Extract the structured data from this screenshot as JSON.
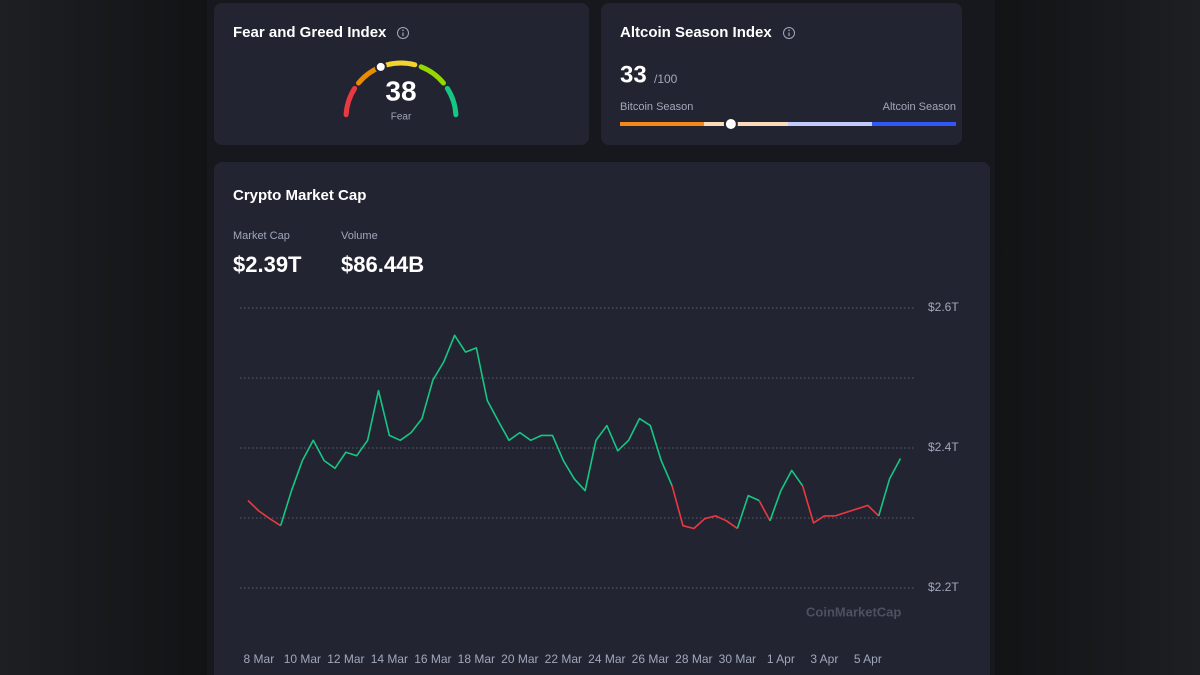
{
  "fear_greed": {
    "title": "Fear and Greed Index",
    "value": 38,
    "label": "Fear",
    "range": [
      0,
      100
    ],
    "colors": [
      "#ea3943",
      "#ea8c00",
      "#f3d42f",
      "#93d900",
      "#16c784"
    ]
  },
  "altcoin_season": {
    "title": "Altcoin Season Index",
    "value": 33,
    "max_label": "/100",
    "range": [
      0,
      100
    ],
    "left_label": "Bitcoin Season",
    "right_label": "Altcoin Season",
    "colors": [
      "#f68819",
      "#fcdbb9",
      "#c1ccfd",
      "#3156fa"
    ]
  },
  "market_cap": {
    "title": "Crypto Market Cap",
    "stats": [
      {
        "label": "Market Cap",
        "value": "$2.39T"
      },
      {
        "label": "Volume",
        "value": "$86.44B"
      }
    ],
    "watermark": "CoinMarketCap"
  },
  "chart_data": {
    "type": "line",
    "x": [
      7.5,
      8,
      8.5,
      9,
      9.5,
      10,
      10.5,
      11,
      11.5,
      12,
      12.5,
      13,
      13.5,
      14,
      14.5,
      15,
      15.5,
      16,
      16.5,
      17,
      17.5,
      18,
      18.5,
      19,
      19.5,
      20,
      20.5,
      21,
      21.5,
      22,
      22.5,
      23,
      23.5,
      24,
      24.5,
      25,
      25.5,
      26,
      26.5,
      27,
      27.5,
      28,
      28.5,
      29,
      29.5,
      30,
      30.5,
      31,
      31.5,
      32,
      32.5,
      33,
      33.5,
      34,
      34.5,
      35,
      35.5,
      36,
      36.5,
      37,
      37.5
    ],
    "values": [
      2.325,
      2.31,
      2.299,
      2.289,
      2.339,
      2.382,
      2.411,
      2.382,
      2.371,
      2.394,
      2.389,
      2.411,
      2.482,
      2.418,
      2.411,
      2.422,
      2.442,
      2.497,
      2.523,
      2.561,
      2.537,
      2.543,
      2.468,
      2.439,
      2.411,
      2.422,
      2.411,
      2.418,
      2.418,
      2.382,
      2.356,
      2.339,
      2.411,
      2.432,
      2.396,
      2.411,
      2.442,
      2.432,
      2.382,
      2.346,
      2.289,
      2.285,
      2.299,
      2.303,
      2.296,
      2.285,
      2.332,
      2.325,
      2.296,
      2.339,
      2.368,
      2.346,
      2.293,
      2.303,
      2.303,
      2.308,
      2.313,
      2.318,
      2.303,
      2.356,
      2.385
    ],
    "xlim": [
      7.5,
      37.8
    ],
    "xticks": [
      {
        "value": 8,
        "label": "8 Mar"
      },
      {
        "value": 10,
        "label": "10 Mar"
      },
      {
        "value": 12,
        "label": "12 Mar"
      },
      {
        "value": 14,
        "label": "14 Mar"
      },
      {
        "value": 16,
        "label": "16 Mar"
      },
      {
        "value": 18,
        "label": "18 Mar"
      },
      {
        "value": 20,
        "label": "20 Mar"
      },
      {
        "value": 22,
        "label": "22 Mar"
      },
      {
        "value": 24,
        "label": "24 Mar"
      },
      {
        "value": 26,
        "label": "26 Mar"
      },
      {
        "value": 28,
        "label": "28 Mar"
      },
      {
        "value": 30,
        "label": "30 Mar"
      },
      {
        "value": 32,
        "label": "1 Apr"
      },
      {
        "value": 34,
        "label": "3 Apr"
      },
      {
        "value": 36,
        "label": "5 Apr"
      }
    ],
    "ylim": [
      2.13,
      2.62
    ],
    "yticks": [
      {
        "value": 2.2,
        "label": "$2.2T"
      },
      {
        "value": 2.3,
        "label": null
      },
      {
        "value": 2.4,
        "label": "$2.4T"
      },
      {
        "value": 2.5,
        "label": null
      },
      {
        "value": 2.6,
        "label": "$2.6T"
      }
    ],
    "grid": true,
    "up_color": "#16c784",
    "down_color": "#ea3943"
  }
}
